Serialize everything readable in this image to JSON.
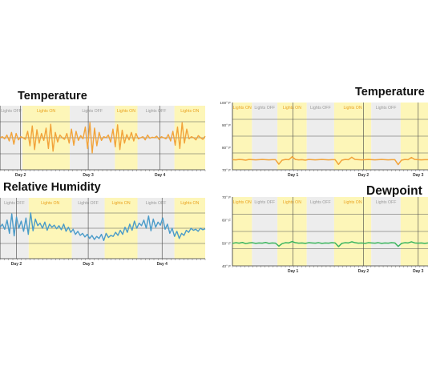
{
  "chart_data": [
    {
      "type": "line",
      "title": "Temperature",
      "period_labels": [
        "Lights OFF",
        "Lights ON",
        "Lights OFF",
        "Lights ON",
        "Lights OFF",
        "Lights ON"
      ],
      "day_labels": [
        "Day 2",
        "Day 3",
        "Day 4"
      ],
      "series": [
        {
          "color": "#f2a33a",
          "values": [
            0.5,
            0.52,
            0.48,
            0.55,
            0.44,
            0.6,
            0.38,
            0.58,
            0.46,
            0.52,
            0.5,
            0.47,
            0.62,
            0.35,
            0.72,
            0.28,
            0.65,
            0.4,
            0.58,
            0.45,
            0.68,
            0.3,
            0.75,
            0.25,
            0.6,
            0.42,
            0.55,
            0.5,
            0.47,
            0.58,
            0.4,
            0.66,
            0.36,
            0.62,
            0.45,
            0.54,
            0.48,
            0.7,
            0.3,
            0.78,
            0.22,
            0.68,
            0.35,
            0.6,
            0.45,
            0.52,
            0.5,
            0.55,
            0.42,
            0.66,
            0.33,
            0.74,
            0.28,
            0.64,
            0.4,
            0.56,
            0.46,
            0.6,
            0.44,
            0.58,
            0.48,
            0.5,
            0.52,
            0.46,
            0.55,
            0.49,
            0.51,
            0.5,
            0.53,
            0.47,
            0.52,
            0.5,
            0.48,
            0.56,
            0.44,
            0.62,
            0.36,
            0.7,
            0.3,
            0.78,
            0.4,
            0.66,
            0.48,
            0.52,
            0.5,
            0.46,
            0.54,
            0.5,
            0.47,
            0.53
          ]
        }
      ]
    },
    {
      "type": "line",
      "title": "Relative Humidity",
      "period_labels": [
        "Lights OFF",
        "Lights ON",
        "Lights OFF",
        "Lights ON",
        "Lights OFF",
        "Lights ON"
      ],
      "day_labels": [
        "Day 2",
        "Day 3",
        "Day 4"
      ],
      "series": [
        {
          "color": "#4a9bc9",
          "values": [
            0.52,
            0.58,
            0.48,
            0.66,
            0.4,
            0.78,
            0.35,
            0.72,
            0.5,
            0.64,
            0.44,
            0.7,
            0.38,
            0.8,
            0.45,
            0.68,
            0.55,
            0.6,
            0.5,
            0.62,
            0.46,
            0.58,
            0.52,
            0.56,
            0.49,
            0.55,
            0.47,
            0.58,
            0.44,
            0.52,
            0.42,
            0.48,
            0.38,
            0.44,
            0.36,
            0.4,
            0.33,
            0.38,
            0.3,
            0.36,
            0.28,
            0.34,
            0.3,
            0.38,
            0.26,
            0.4,
            0.32,
            0.36,
            0.34,
            0.42,
            0.36,
            0.46,
            0.38,
            0.52,
            0.42,
            0.58,
            0.46,
            0.64,
            0.5,
            0.6,
            0.55,
            0.66,
            0.5,
            0.74,
            0.45,
            0.68,
            0.52,
            0.62,
            0.56,
            0.7,
            0.48,
            0.58,
            0.4,
            0.5,
            0.34,
            0.44,
            0.3,
            0.4,
            0.36,
            0.46,
            0.42,
            0.5,
            0.46,
            0.48,
            0.44,
            0.5,
            0.47,
            0.49
          ]
        }
      ]
    },
    {
      "type": "line",
      "title": "Temperature",
      "y_ticks": [
        "100° F",
        "90° F",
        "80° F",
        "70° F"
      ],
      "period_labels": [
        "Lights ON",
        "Lights OFF",
        "Lights ON",
        "Lights OFF",
        "Lights ON",
        "Lights OFF"
      ],
      "day_labels": [
        "Day 1",
        "Day 2",
        "Day 3"
      ],
      "series": [
        {
          "color": "#f2a33a",
          "values": [
            74.5,
            74.4,
            74.6,
            74.5,
            74.3,
            74.6,
            74.5,
            74.4,
            74.5,
            74.6,
            74.5,
            74.4,
            74.5,
            74.5,
            72.5,
            74.3,
            74.6,
            74.5,
            75.8,
            74.6,
            74.4,
            74.5,
            74.3,
            74.6,
            74.5,
            74.4,
            74.5,
            74.6,
            74.5,
            74.4,
            74.5,
            74.5,
            72.4,
            74.3,
            74.6,
            74.5,
            75.6,
            74.6,
            74.5,
            74.4,
            74.5,
            74.6,
            74.5,
            74.4,
            74.5,
            74.6,
            74.5,
            74.4,
            74.5,
            74.5,
            72.3,
            74.3,
            74.6,
            74.5,
            75.5,
            74.6,
            74.5,
            74.4,
            74.5,
            74.5
          ]
        }
      ]
    },
    {
      "type": "line",
      "title": "Dewpoint",
      "y_ticks": [
        "70° F",
        "60° F",
        "50° F",
        "40° F"
      ],
      "period_labels": [
        "Lights ON",
        "Lights OFF",
        "Lights ON",
        "Lights OFF",
        "Lights ON",
        "Lights OFF"
      ],
      "day_labels": [
        "Day 1",
        "Day 2",
        "Day 3"
      ],
      "series": [
        {
          "color": "#3bb55f",
          "values": [
            49.8,
            50.1,
            49.9,
            50.2,
            49.7,
            50.0,
            50.1,
            49.8,
            50.0,
            49.9,
            50.2,
            49.8,
            50.0,
            49.9,
            48.6,
            49.7,
            50.1,
            50.0,
            50.6,
            50.1,
            49.9,
            50.0,
            49.8,
            50.1,
            50.0,
            49.9,
            50.1,
            49.8,
            50.0,
            49.9,
            50.1,
            50.0,
            48.4,
            49.8,
            50.1,
            50.0,
            50.5,
            50.1,
            49.9,
            50.0,
            49.8,
            50.1,
            50.0,
            49.9,
            50.1,
            49.8,
            50.0,
            49.9,
            50.1,
            50.0,
            48.5,
            49.8,
            50.1,
            50.0,
            50.5,
            50.0,
            49.9,
            50.0,
            49.8,
            50.0
          ]
        }
      ]
    }
  ]
}
